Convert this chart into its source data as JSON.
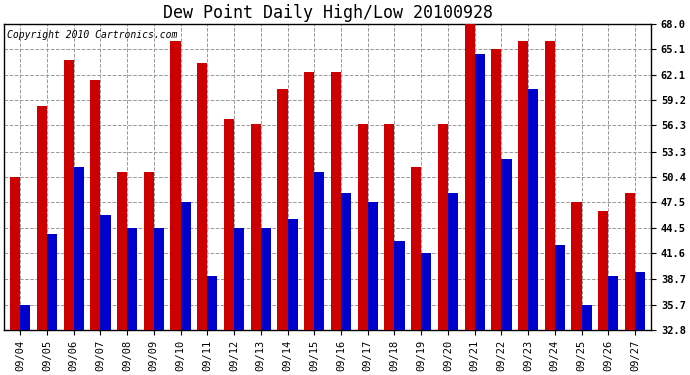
{
  "title": "Dew Point Daily High/Low 20100928",
  "copyright": "Copyright 2010 Cartronics.com",
  "categories": [
    "09/04",
    "09/05",
    "09/06",
    "09/07",
    "09/08",
    "09/09",
    "09/10",
    "09/11",
    "09/12",
    "09/13",
    "09/14",
    "09/15",
    "09/16",
    "09/17",
    "09/18",
    "09/19",
    "09/20",
    "09/21",
    "09/22",
    "09/23",
    "09/24",
    "09/25",
    "09/26",
    "09/27"
  ],
  "high_values": [
    50.4,
    58.5,
    63.8,
    61.5,
    50.9,
    50.9,
    66.0,
    63.5,
    57.0,
    56.5,
    60.5,
    62.5,
    62.5,
    56.5,
    56.5,
    51.5,
    56.5,
    68.0,
    65.1,
    66.0,
    66.0,
    47.5,
    46.5,
    48.5
  ],
  "low_values": [
    35.7,
    43.8,
    51.5,
    46.0,
    44.5,
    44.5,
    47.5,
    39.0,
    44.5,
    44.5,
    45.5,
    50.9,
    48.5,
    47.5,
    43.0,
    41.6,
    48.5,
    64.5,
    52.5,
    60.5,
    42.5,
    35.7,
    39.0,
    39.5
  ],
  "bar_color_high": "#cc0000",
  "bar_color_low": "#0000cc",
  "bg_color": "#ffffff",
  "plot_bg_color": "#ffffff",
  "grid_color": "#999999",
  "yticks": [
    32.8,
    35.7,
    38.7,
    41.6,
    44.5,
    47.5,
    50.4,
    53.3,
    56.3,
    59.2,
    62.1,
    65.1,
    68.0
  ],
  "ymin": 32.8,
  "ymax": 68.0,
  "title_fontsize": 12,
  "copyright_fontsize": 7,
  "tick_fontsize": 7.5,
  "bar_width": 0.38,
  "figwidth": 6.9,
  "figheight": 3.75,
  "dpi": 100
}
